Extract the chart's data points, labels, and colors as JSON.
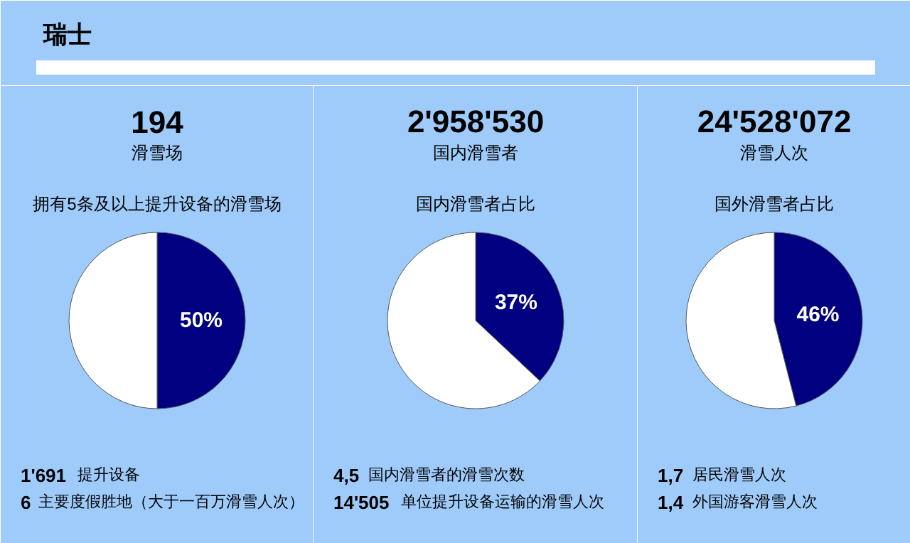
{
  "chart_data": [
    {
      "type": "other",
      "title": "瑞士"
    },
    {
      "type": "pie",
      "title": "194",
      "subtitle": "滑雪场",
      "annotations": [
        "拥有5条及以上提升设备的滑雪场",
        "1'691 提升设备",
        "6 主要度假胜地（大于一百万滑雪人次）"
      ],
      "categories": [
        null,
        null
      ],
      "values": [
        50,
        50
      ],
      "colors": [
        "#000080",
        "#ffffff"
      ],
      "value_labels": [
        "50%",
        null
      ]
    },
    {
      "type": "pie",
      "title": "2'958'530",
      "subtitle": "国内滑雪者",
      "annotations": [
        "国内滑雪者占比",
        "4,5 国内滑雪者的滑雪次数",
        "14'505 单位提升设备运输的滑雪人次"
      ],
      "categories": [
        null,
        null
      ],
      "values": [
        37,
        63
      ],
      "colors": [
        "#000080",
        "#ffffff"
      ],
      "value_labels": [
        "37%",
        null
      ]
    },
    {
      "type": "pie",
      "title": "24'528'072",
      "subtitle": "滑雪人次",
      "annotations": [
        "国外滑雪者占比",
        "1,7 居民滑雪人次",
        "1,4 外国游客滑雪人次"
      ],
      "categories": [
        null,
        null
      ],
      "values": [
        46,
        54
      ],
      "colors": [
        "#000080",
        "#ffffff"
      ],
      "value_labels": [
        "46%",
        null
      ]
    }
  ]
}
